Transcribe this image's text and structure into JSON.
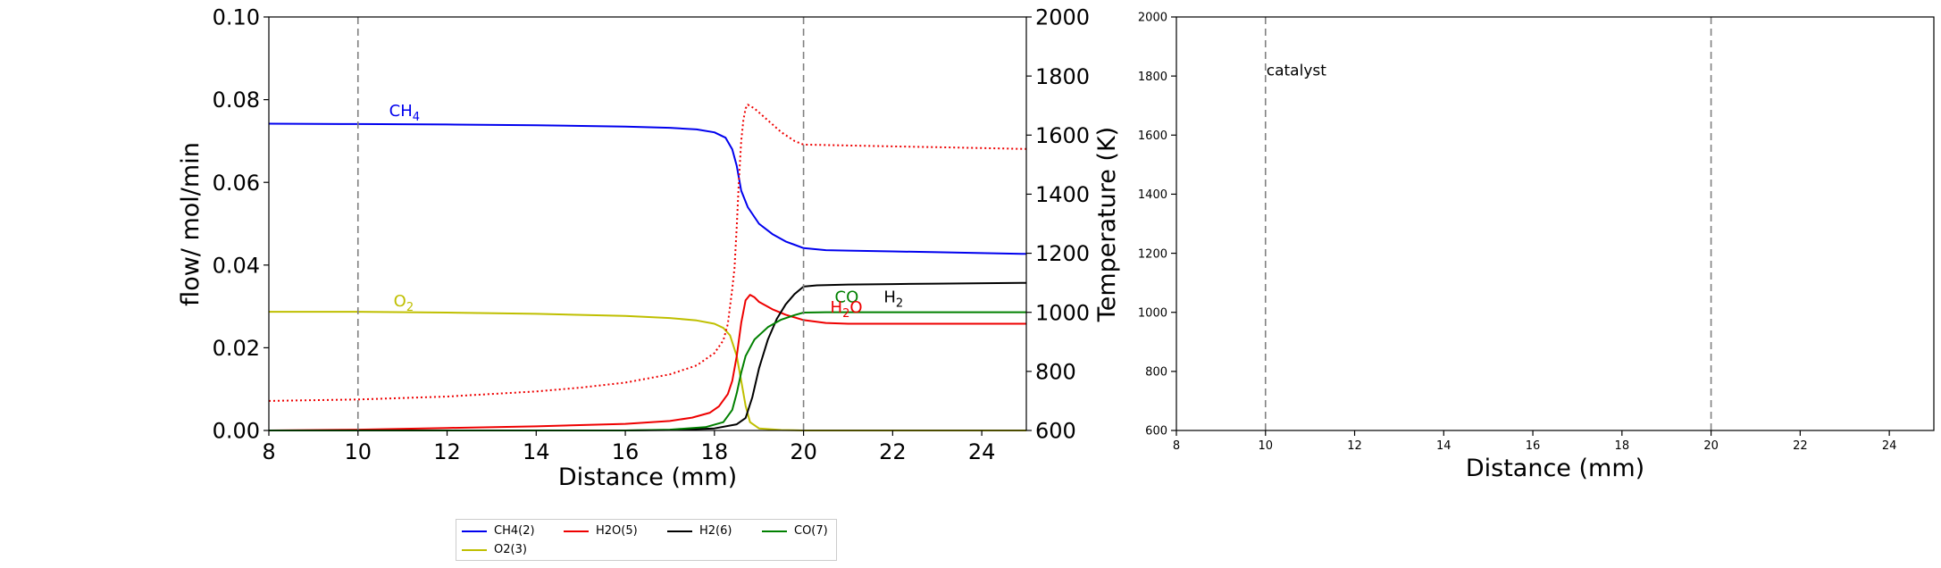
{
  "chart_data": [
    {
      "type": "line",
      "xlabel": "Distance (mm)",
      "ylabel": "flow/ mol/min",
      "y2label": "Temperature (K)",
      "xlim": [
        8,
        25
      ],
      "ylim": [
        0,
        0.1
      ],
      "y2lim": [
        600,
        2000
      ],
      "xticks": [
        "8",
        "10",
        "12",
        "14",
        "16",
        "18",
        "20",
        "22",
        "24"
      ],
      "yticks": [
        "0.00",
        "0.02",
        "0.04",
        "0.06",
        "0.08",
        "0.10"
      ],
      "y2ticks": [
        "600",
        "800",
        "1000",
        "1200",
        "1400",
        "1600",
        "1800",
        "2000"
      ],
      "vlines": [
        10,
        20
      ],
      "grid": false,
      "legend_position": "below",
      "colors": {
        "CH4(2)": "#0000ee",
        "O2(3)": "#bfbf00",
        "H2O(5)": "#ee0000",
        "H2(6)": "#000000",
        "CO(7)": "#008000",
        "temperature": "#ee0000",
        "axis": "#000000",
        "vline": "#808080"
      },
      "series": [
        {
          "name": "CH4(2)",
          "color": "#0000ee",
          "points": [
            [
              8,
              0.0742
            ],
            [
              10,
              0.0741
            ],
            [
              12,
              0.074
            ],
            [
              14,
              0.0738
            ],
            [
              16,
              0.0735
            ],
            [
              17,
              0.0732
            ],
            [
              17.6,
              0.0728
            ],
            [
              18,
              0.0721
            ],
            [
              18.25,
              0.0708
            ],
            [
              18.4,
              0.068
            ],
            [
              18.5,
              0.064
            ],
            [
              18.6,
              0.058
            ],
            [
              18.75,
              0.054
            ],
            [
              19,
              0.05
            ],
            [
              19.3,
              0.0475
            ],
            [
              19.6,
              0.0457
            ],
            [
              20,
              0.0441
            ],
            [
              20.5,
              0.0436
            ],
            [
              21,
              0.0435
            ],
            [
              22,
              0.0433
            ],
            [
              23,
              0.0431
            ],
            [
              24,
              0.0429
            ],
            [
              25,
              0.0427
            ]
          ]
        },
        {
          "name": "O2(3)",
          "color": "#bfbf00",
          "points": [
            [
              8,
              0.0287
            ],
            [
              10,
              0.0287
            ],
            [
              12,
              0.0285
            ],
            [
              14,
              0.0282
            ],
            [
              16,
              0.0277
            ],
            [
              17,
              0.0272
            ],
            [
              17.6,
              0.0266
            ],
            [
              18,
              0.0258
            ],
            [
              18.2,
              0.0248
            ],
            [
              18.35,
              0.023
            ],
            [
              18.5,
              0.018
            ],
            [
              18.6,
              0.012
            ],
            [
              18.7,
              0.006
            ],
            [
              18.8,
              0.002
            ],
            [
              19,
              0.0005
            ],
            [
              19.5,
              0.0001
            ],
            [
              20,
              0.0
            ],
            [
              25,
              0.0
            ]
          ]
        },
        {
          "name": "H2O(5)",
          "color": "#ee0000",
          "points": [
            [
              8,
              0.0
            ],
            [
              10,
              0.0002
            ],
            [
              12,
              0.0006
            ],
            [
              14,
              0.001
            ],
            [
              16,
              0.0016
            ],
            [
              17,
              0.0023
            ],
            [
              17.5,
              0.0031
            ],
            [
              17.9,
              0.0043
            ],
            [
              18.1,
              0.0058
            ],
            [
              18.3,
              0.0088
            ],
            [
              18.4,
              0.012
            ],
            [
              18.5,
              0.018
            ],
            [
              18.6,
              0.026
            ],
            [
              18.7,
              0.0315
            ],
            [
              18.8,
              0.0328
            ],
            [
              18.9,
              0.0322
            ],
            [
              19,
              0.0311
            ],
            [
              19.3,
              0.0293
            ],
            [
              19.6,
              0.028
            ],
            [
              20,
              0.0267
            ],
            [
              20.5,
              0.026
            ],
            [
              21,
              0.0258
            ],
            [
              23,
              0.0258
            ],
            [
              25,
              0.0258
            ]
          ]
        },
        {
          "name": "H2(6)",
          "color": "#000000",
          "points": [
            [
              8,
              0.0
            ],
            [
              16,
              0.0
            ],
            [
              17,
              0.0001
            ],
            [
              18,
              0.0005
            ],
            [
              18.5,
              0.0015
            ],
            [
              18.7,
              0.003
            ],
            [
              18.85,
              0.008
            ],
            [
              19,
              0.015
            ],
            [
              19.2,
              0.022
            ],
            [
              19.4,
              0.027
            ],
            [
              19.6,
              0.0305
            ],
            [
              19.8,
              0.033
            ],
            [
              20,
              0.0348
            ],
            [
              20.3,
              0.0351
            ],
            [
              21,
              0.0353
            ],
            [
              22,
              0.0354
            ],
            [
              23,
              0.0355
            ],
            [
              25,
              0.0357
            ]
          ]
        },
        {
          "name": "CO(7)",
          "color": "#008000",
          "points": [
            [
              8,
              0.0
            ],
            [
              16,
              0.0
            ],
            [
              17,
              0.0002
            ],
            [
              17.8,
              0.0008
            ],
            [
              18.2,
              0.002
            ],
            [
              18.4,
              0.005
            ],
            [
              18.5,
              0.009
            ],
            [
              18.6,
              0.014
            ],
            [
              18.7,
              0.018
            ],
            [
              18.9,
              0.022
            ],
            [
              19.2,
              0.025
            ],
            [
              19.5,
              0.0268
            ],
            [
              19.8,
              0.0279
            ],
            [
              20,
              0.0285
            ],
            [
              20.5,
              0.0286
            ],
            [
              22,
              0.0286
            ],
            [
              25,
              0.0286
            ]
          ]
        },
        {
          "name": "Temperature",
          "axis": "y2",
          "style": "dotted",
          "color": "#ee0000",
          "points": [
            [
              8,
              700
            ],
            [
              10,
              705
            ],
            [
              12,
              715
            ],
            [
              14,
              732
            ],
            [
              15,
              745
            ],
            [
              16,
              762
            ],
            [
              17,
              790
            ],
            [
              17.6,
              820
            ],
            [
              18,
              862
            ],
            [
              18.2,
              905
            ],
            [
              18.3,
              960
            ],
            [
              18.4,
              1080
            ],
            [
              18.45,
              1150
            ],
            [
              18.5,
              1290
            ],
            [
              18.55,
              1450
            ],
            [
              18.6,
              1580
            ],
            [
              18.65,
              1650
            ],
            [
              18.7,
              1690
            ],
            [
              18.75,
              1703
            ],
            [
              18.9,
              1690
            ],
            [
              19.2,
              1650
            ],
            [
              19.5,
              1610
            ],
            [
              19.8,
              1580
            ],
            [
              20,
              1568
            ],
            [
              21,
              1565
            ],
            [
              22,
              1562
            ],
            [
              23,
              1559
            ],
            [
              24,
              1556
            ],
            [
              25,
              1553
            ]
          ]
        }
      ],
      "annotations": [
        {
          "base": "CH",
          "sub": "4",
          "x": 10.7,
          "y": 0.076,
          "color": "#0000ee"
        },
        {
          "base": "O",
          "sub": "2",
          "x": 10.8,
          "y": 0.03,
          "color": "#bfbf00"
        },
        {
          "base": "CO",
          "sub": "",
          "x": 20.7,
          "y": 0.031,
          "color": "#008000"
        },
        {
          "base": "H",
          "sub": "2",
          "x": 21.8,
          "y": 0.031,
          "color": "#000000"
        },
        {
          "base": "H",
          "sub": "2",
          "tail": "O",
          "x": 20.6,
          "y": 0.0285,
          "color": "#ee0000"
        }
      ],
      "legend": [
        "CH4(2)",
        "H2O(5)",
        "H2(6)",
        "CO(7)",
        "O2(3)"
      ]
    },
    {
      "type": "line",
      "xlabel": "Distance (mm)",
      "ylabel": "",
      "xlim": [
        8,
        25
      ],
      "ylim": [
        600,
        2000
      ],
      "xticks": [
        "8",
        "10",
        "12",
        "14",
        "16",
        "18",
        "20",
        "22",
        "24"
      ],
      "yticks": [
        "600",
        "800",
        "1000",
        "1200",
        "1400",
        "1600",
        "1800",
        "2000"
      ],
      "vlines": [
        10,
        20
      ],
      "grid": false,
      "series": [],
      "annotations": [
        {
          "text": "catalyst",
          "x": 10,
          "y": 1820
        }
      ]
    }
  ]
}
